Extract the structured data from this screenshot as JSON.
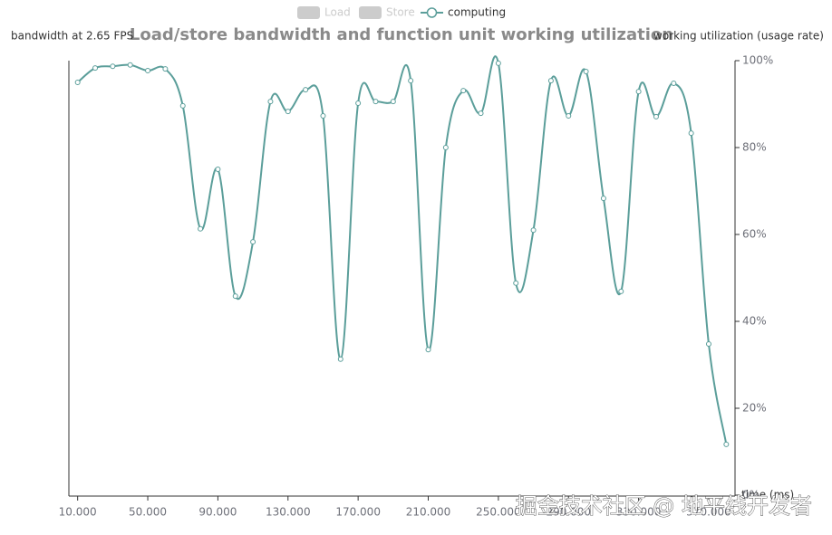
{
  "chart_data": {
    "type": "line",
    "title": "Load/store bandwidth and function unit working utilization",
    "y_axis_label": "bandwidth at 2.65 FPS",
    "y2_axis_label": "working utilization (usage rate)",
    "x_axis_label": "time (ms)",
    "legend": [
      {
        "name": "Load",
        "color": "#cccccc",
        "selected": false
      },
      {
        "name": "Store",
        "color": "#cccccc",
        "selected": false
      }
    ],
    "categories": [
      "10.000",
      null,
      null,
      null,
      "50.000",
      null,
      null,
      null,
      "90.000",
      null,
      null,
      null,
      "130.000",
      null,
      null,
      null,
      "170.000",
      null,
      null,
      null,
      "210.000",
      null,
      null,
      null,
      "250.000",
      null,
      null,
      null,
      "290.000",
      null,
      null,
      null,
      "330.000",
      null,
      null,
      null,
      "370.000",
      null
    ],
    "series": [
      {
        "name": "computing",
        "color": "#5b9e9a",
        "axis": "y2",
        "smooth": true,
        "values": [
          95,
          98.3,
          98.7,
          99,
          97.7,
          98.1,
          89.6,
          61.3,
          75,
          45.8,
          58.3,
          90.6,
          88.3,
          93.3,
          87.3,
          31.3,
          90.2,
          90.6,
          90.6,
          95.4,
          33.5,
          80,
          93.1,
          87.9,
          99.4,
          48.8,
          61,
          95.4,
          87.3,
          97.5,
          68.3,
          46.9,
          92.9,
          87.1,
          94.8,
          83.3,
          34.8,
          11.7
        ]
      }
    ],
    "y2lim": [
      0,
      100
    ],
    "y2ticks": [
      {
        "value": 0,
        "label": "0%"
      },
      {
        "value": 20,
        "label": "20%"
      },
      {
        "value": 40,
        "label": "40%"
      },
      {
        "value": 60,
        "label": "60%"
      },
      {
        "value": 80,
        "label": "80%"
      },
      {
        "value": 100,
        "label": "100%"
      }
    ],
    "grid": false,
    "watermark": "掘金技术社区 @ 地平线开发者"
  }
}
